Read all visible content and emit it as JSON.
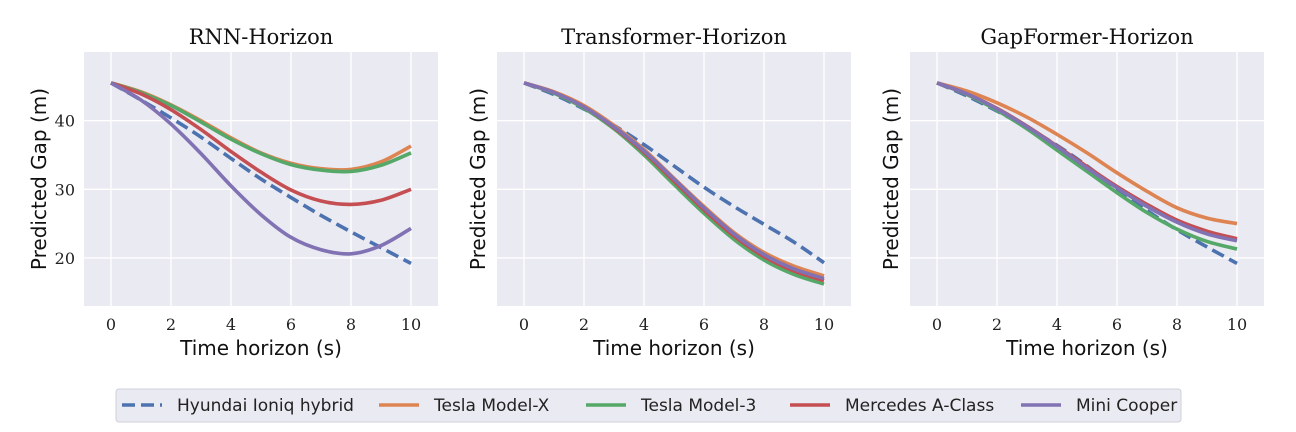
{
  "chart_data": [
    {
      "type": "line",
      "title": "RNN-Horizon",
      "xlabel": "Time horizon (s)",
      "ylabel": "Predicted Gap (m)",
      "xlim": [
        -0.9,
        10.9
      ],
      "ylim": [
        13,
        50
      ],
      "xticks": [
        0,
        2,
        4,
        6,
        8,
        10
      ],
      "yticks": [
        20,
        30,
        40
      ],
      "show_yticklabels": true,
      "grid": true,
      "x": [
        0,
        1,
        2,
        3,
        4,
        5,
        6,
        7,
        8,
        9,
        10
      ],
      "series": [
        {
          "name": "Hyundai Ioniq hybrid",
          "values": [
            45.5,
            43.0,
            40.4,
            37.6,
            34.5,
            31.5,
            28.8,
            26.2,
            23.8,
            21.5,
            19.2
          ]
        },
        {
          "name": "Tesla Model-X",
          "values": [
            45.5,
            44.2,
            42.3,
            40.0,
            37.5,
            35.3,
            33.8,
            33.0,
            32.9,
            34.0,
            36.3
          ]
        },
        {
          "name": "Tesla Model-3",
          "values": [
            45.5,
            44.1,
            42.2,
            39.8,
            37.3,
            35.2,
            33.6,
            32.8,
            32.6,
            33.5,
            35.3
          ]
        },
        {
          "name": "Mercedes A-Class",
          "values": [
            45.5,
            43.9,
            41.6,
            38.7,
            35.5,
            32.5,
            29.9,
            28.3,
            27.8,
            28.4,
            30.0
          ]
        },
        {
          "name": "Mini Cooper",
          "values": [
            45.5,
            43.0,
            39.5,
            35.2,
            30.5,
            26.3,
            23.0,
            21.2,
            20.6,
            21.8,
            24.3
          ]
        }
      ]
    },
    {
      "type": "line",
      "title": "Transformer-Horizon",
      "xlabel": "Time horizon (s)",
      "ylabel": "Predicted Gap (m)",
      "xlim": [
        -0.9,
        10.9
      ],
      "ylim": [
        13,
        50
      ],
      "xticks": [
        0,
        2,
        4,
        6,
        8,
        10
      ],
      "yticks": [
        20,
        30,
        40
      ],
      "show_yticklabels": false,
      "grid": true,
      "x": [
        0,
        1,
        2,
        3,
        4,
        5,
        6,
        7,
        8,
        9,
        10
      ],
      "series": [
        {
          "name": "Hyundai Ioniq hybrid",
          "values": [
            45.5,
            43.8,
            41.7,
            39.3,
            36.5,
            33.4,
            30.3,
            27.5,
            24.9,
            22.3,
            19.3
          ]
        },
        {
          "name": "Tesla Model-X",
          "values": [
            45.5,
            44.2,
            42.2,
            39.3,
            35.8,
            31.6,
            27.5,
            23.7,
            20.8,
            18.8,
            17.4
          ]
        },
        {
          "name": "Tesla Model-3",
          "values": [
            45.5,
            44.0,
            41.8,
            38.8,
            35.0,
            30.7,
            26.5,
            22.7,
            19.7,
            17.6,
            16.2
          ]
        },
        {
          "name": "Mercedes A-Class",
          "values": [
            45.5,
            44.1,
            42.0,
            39.0,
            35.4,
            31.2,
            27.0,
            23.2,
            20.2,
            18.1,
            16.7
          ]
        },
        {
          "name": "Mini Cooper",
          "values": [
            45.5,
            44.1,
            42.0,
            39.1,
            35.6,
            31.5,
            27.3,
            23.5,
            20.5,
            18.4,
            17.0
          ]
        }
      ]
    },
    {
      "type": "line",
      "title": "GapFormer-Horizon",
      "xlabel": "Time horizon (s)",
      "ylabel": "Predicted Gap (m)",
      "xlim": [
        -0.9,
        10.9
      ],
      "ylim": [
        13,
        50
      ],
      "xticks": [
        0,
        2,
        4,
        6,
        8,
        10
      ],
      "yticks": [
        20,
        30,
        40
      ],
      "show_yticklabels": false,
      "grid": true,
      "x": [
        0,
        1,
        2,
        3,
        4,
        5,
        6,
        7,
        8,
        9,
        10
      ],
      "series": [
        {
          "name": "Hyundai Ioniq hybrid",
          "values": [
            45.5,
            43.6,
            41.4,
            39.0,
            36.4,
            33.4,
            30.0,
            26.9,
            24.1,
            21.6,
            19.2
          ]
        },
        {
          "name": "Tesla Model-X",
          "values": [
            45.5,
            44.3,
            42.6,
            40.5,
            38.0,
            35.3,
            32.4,
            29.7,
            27.3,
            25.8,
            25.0
          ]
        },
        {
          "name": "Tesla Model-3",
          "values": [
            45.5,
            43.8,
            41.5,
            38.8,
            35.7,
            32.6,
            29.5,
            26.6,
            24.2,
            22.4,
            21.3
          ]
        },
        {
          "name": "Mercedes A-Class",
          "values": [
            45.5,
            43.9,
            41.8,
            39.2,
            36.3,
            33.3,
            30.4,
            27.8,
            25.5,
            23.9,
            22.8
          ]
        },
        {
          "name": "Mini Cooper",
          "values": [
            45.5,
            43.9,
            41.7,
            39.1,
            36.2,
            33.1,
            30.2,
            27.5,
            25.2,
            23.5,
            22.5
          ]
        }
      ]
    }
  ],
  "legend": {
    "placement": "bottom-center",
    "entries": [
      {
        "name": "Hyundai Ioniq hybrid",
        "color": "#4C72B0",
        "dashed": true
      },
      {
        "name": "Tesla Model-X",
        "color": "#DD8452",
        "dashed": false
      },
      {
        "name": "Tesla Model-3",
        "color": "#55A868",
        "dashed": false
      },
      {
        "name": "Mercedes A-Class",
        "color": "#C44E52",
        "dashed": false
      },
      {
        "name": "Mini Cooper",
        "color": "#8172B3",
        "dashed": false
      }
    ]
  },
  "colors": {
    "plot_background": "#EAEAF2",
    "grid": "#FFFFFF",
    "series": [
      "#4C72B0",
      "#DD8452",
      "#55A868",
      "#C44E52",
      "#8172B3"
    ]
  }
}
